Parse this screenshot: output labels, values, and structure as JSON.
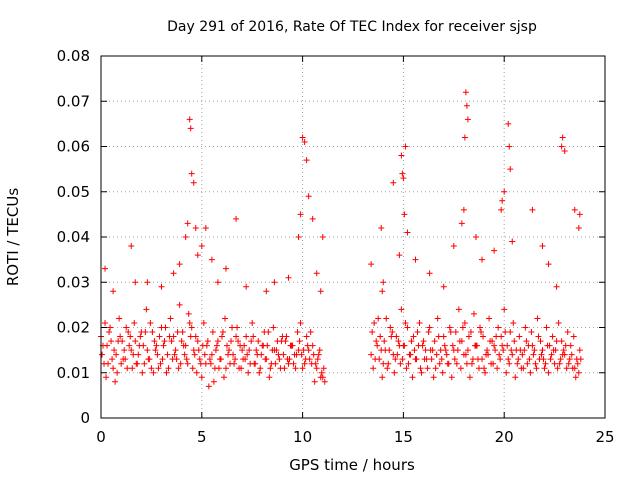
{
  "chart_data": {
    "type": "scatter",
    "title": "Day 291 of 2016, Rate Of TEC Index for receiver sjsp",
    "xlabel": "GPS time / hours",
    "ylabel": "ROTI / TECUs",
    "xlim": [
      0,
      25
    ],
    "ylim": [
      0,
      0.08
    ],
    "xticks": [
      "0",
      "5",
      "10",
      "15",
      "20",
      "25"
    ],
    "yticks": [
      "0",
      "0.01",
      "0.02",
      "0.03",
      "0.04",
      "0.05",
      "0.06",
      "0.07",
      "0.08"
    ],
    "grid": true,
    "marker": "+",
    "series": [
      {
        "name": "ROTI",
        "color": "#ff0000",
        "x": [
          0.0,
          0.15,
          0.3,
          0.45,
          0.6,
          0.75,
          0.9,
          1.05,
          1.2,
          1.35,
          1.5,
          1.65,
          1.8,
          1.95,
          2.1,
          2.25,
          2.4,
          2.55,
          2.7,
          2.85,
          3.0,
          3.15,
          3.3,
          3.45,
          3.6,
          3.75,
          3.9,
          4.05,
          4.2,
          4.35,
          4.5,
          4.65,
          4.8,
          4.95,
          5.1,
          5.25,
          5.4,
          5.55,
          5.7,
          5.85,
          6.0,
          6.15,
          6.3,
          6.45,
          6.6,
          6.75,
          6.9,
          7.05,
          7.2,
          7.35,
          7.5,
          7.65,
          7.8,
          7.95,
          8.1,
          8.25,
          8.4,
          8.55,
          8.7,
          8.85,
          9.0,
          9.15,
          9.3,
          9.45,
          9.6,
          9.75,
          9.9,
          10.05,
          10.2,
          10.35,
          10.5,
          10.65,
          10.8,
          10.95,
          11.1,
          0.05,
          0.2,
          0.35,
          0.5,
          0.65,
          0.8,
          0.95,
          1.1,
          1.25,
          1.4,
          1.55,
          1.7,
          1.85,
          2.0,
          2.15,
          2.3,
          2.45,
          2.6,
          2.75,
          2.9,
          3.05,
          3.2,
          3.35,
          3.5,
          3.65,
          3.8,
          3.95,
          4.1,
          4.25,
          4.4,
          4.55,
          4.7,
          4.85,
          5.0,
          5.15,
          5.3,
          5.45,
          5.6,
          5.75,
          5.9,
          6.05,
          6.2,
          6.35,
          6.5,
          6.65,
          6.8,
          6.95,
          7.1,
          7.25,
          7.4,
          7.55,
          7.7,
          7.85,
          8.0,
          8.15,
          8.3,
          8.45,
          8.6,
          8.75,
          8.9,
          9.05,
          9.2,
          9.35,
          9.5,
          9.65,
          9.8,
          9.95,
          10.1,
          10.25,
          10.4,
          10.55,
          10.7,
          10.85,
          11.0,
          0.1,
          0.25,
          0.4,
          0.55,
          0.7,
          0.85,
          1.0,
          1.15,
          1.3,
          1.45,
          1.6,
          1.75,
          1.9,
          2.05,
          2.2,
          2.35,
          2.5,
          2.65,
          2.8,
          2.95,
          3.1,
          3.25,
          3.4,
          3.55,
          3.7,
          3.85,
          4.0,
          4.15,
          4.3,
          4.45,
          4.6,
          4.75,
          4.9,
          5.05,
          5.2,
          5.35,
          5.5,
          5.65,
          5.8,
          5.95,
          6.1,
          6.25,
          6.4,
          6.55,
          6.7,
          6.85,
          7.0,
          7.15,
          7.3,
          7.45,
          7.6,
          7.75,
          7.9,
          8.05,
          8.2,
          8.35,
          8.5,
          8.65,
          8.8,
          8.95,
          9.1,
          9.25,
          9.4,
          9.55,
          9.7,
          9.85,
          10.0,
          10.15,
          10.3,
          10.45,
          10.6,
          10.75,
          10.9,
          11.05,
          0.2,
          0.6,
          1.5,
          1.7,
          2.3,
          3.0,
          3.6,
          3.9,
          4.2,
          4.3,
          4.4,
          4.45,
          4.5,
          4.6,
          4.7,
          4.8,
          5.0,
          5.2,
          5.5,
          5.8,
          6.2,
          6.7,
          7.2,
          8.2,
          8.6,
          9.3,
          9.8,
          9.9,
          10.0,
          10.1,
          10.2,
          10.3,
          10.5,
          10.7,
          10.9,
          11.0,
          13.4,
          13.55,
          13.7,
          13.85,
          14.0,
          14.15,
          14.3,
          14.45,
          14.6,
          14.75,
          14.9,
          15.05,
          15.2,
          15.35,
          15.5,
          15.65,
          15.8,
          15.95,
          16.1,
          16.25,
          16.4,
          16.55,
          16.7,
          16.85,
          17.0,
          17.15,
          17.3,
          17.45,
          17.6,
          17.75,
          17.9,
          18.05,
          18.2,
          18.35,
          18.5,
          18.65,
          18.8,
          18.95,
          19.1,
          19.25,
          19.4,
          19.55,
          19.7,
          19.85,
          20.0,
          20.15,
          20.3,
          20.45,
          20.6,
          20.75,
          20.9,
          21.05,
          21.2,
          21.35,
          21.5,
          21.65,
          21.8,
          21.95,
          22.1,
          22.25,
          22.4,
          22.55,
          22.7,
          22.85,
          23.0,
          23.15,
          23.3,
          23.45,
          23.6,
          23.75,
          13.45,
          13.6,
          13.75,
          13.9,
          14.05,
          14.2,
          14.35,
          14.5,
          14.65,
          14.8,
          14.95,
          15.1,
          15.25,
          15.4,
          15.55,
          15.7,
          15.85,
          16.0,
          16.15,
          16.3,
          16.45,
          16.6,
          16.75,
          16.9,
          17.05,
          17.2,
          17.35,
          17.5,
          17.65,
          17.8,
          17.95,
          18.1,
          18.25,
          18.4,
          18.55,
          18.7,
          18.85,
          19.0,
          19.15,
          19.3,
          19.45,
          19.6,
          19.75,
          19.9,
          20.05,
          20.2,
          20.35,
          20.5,
          20.65,
          20.8,
          20.95,
          21.1,
          21.25,
          21.4,
          21.55,
          21.7,
          21.85,
          22.0,
          22.15,
          22.3,
          22.45,
          22.6,
          22.75,
          22.9,
          23.05,
          23.2,
          23.35,
          23.5,
          23.65,
          23.8,
          13.5,
          13.65,
          13.8,
          13.95,
          14.1,
          14.25,
          14.4,
          14.55,
          14.7,
          14.85,
          15.0,
          15.15,
          15.3,
          15.45,
          15.6,
          15.75,
          15.9,
          16.05,
          16.2,
          16.35,
          16.5,
          16.65,
          16.8,
          16.95,
          17.1,
          17.25,
          17.4,
          17.55,
          17.7,
          17.85,
          18.0,
          18.15,
          18.3,
          18.45,
          18.6,
          18.75,
          18.9,
          19.05,
          19.2,
          19.35,
          19.5,
          19.65,
          19.8,
          19.95,
          20.1,
          20.25,
          20.4,
          20.55,
          20.7,
          20.85,
          21.0,
          21.15,
          21.3,
          21.45,
          21.6,
          21.75,
          21.9,
          22.05,
          22.2,
          22.35,
          22.5,
          22.65,
          22.8,
          22.95,
          23.1,
          23.25,
          23.4,
          23.55,
          23.7,
          13.4,
          13.9,
          13.95,
          14.0,
          14.5,
          14.8,
          14.9,
          14.95,
          15.0,
          15.05,
          15.1,
          15.2,
          15.6,
          16.3,
          17.0,
          17.5,
          17.9,
          18.0,
          18.05,
          18.1,
          18.15,
          18.2,
          18.6,
          18.9,
          19.5,
          19.85,
          19.9,
          20.0,
          20.2,
          20.25,
          20.3,
          20.4,
          21.4,
          21.9,
          22.2,
          22.6,
          22.85,
          22.9,
          23.0,
          23.5,
          23.7,
          23.75
        ],
        "y": [
          0.018,
          0.012,
          0.016,
          0.02,
          0.011,
          0.014,
          0.022,
          0.017,
          0.013,
          0.019,
          0.015,
          0.021,
          0.012,
          0.018,
          0.016,
          0.024,
          0.013,
          0.019,
          0.015,
          0.011,
          0.02,
          0.017,
          0.014,
          0.022,
          0.018,
          0.013,
          0.025,
          0.019,
          0.016,
          0.023,
          0.02,
          0.014,
          0.017,
          0.012,
          0.021,
          0.016,
          0.013,
          0.019,
          0.015,
          0.011,
          0.018,
          0.022,
          0.014,
          0.017,
          0.012,
          0.02,
          0.016,
          0.013,
          0.018,
          0.015,
          0.021,
          0.012,
          0.017,
          0.014,
          0.019,
          0.016,
          0.011,
          0.02,
          0.015,
          0.013,
          0.018,
          0.017,
          0.012,
          0.016,
          0.014,
          0.019,
          0.021,
          0.015,
          0.018,
          0.013,
          0.016,
          0.012,
          0.014,
          0.01,
          0.008,
          0.014,
          0.021,
          0.012,
          0.017,
          0.015,
          0.01,
          0.018,
          0.013,
          0.02,
          0.016,
          0.011,
          0.017,
          0.014,
          0.019,
          0.012,
          0.015,
          0.021,
          0.01,
          0.016,
          0.018,
          0.013,
          0.02,
          0.011,
          0.017,
          0.014,
          0.019,
          0.012,
          0.016,
          0.013,
          0.021,
          0.011,
          0.018,
          0.015,
          0.009,
          0.014,
          0.017,
          0.012,
          0.008,
          0.016,
          0.013,
          0.019,
          0.011,
          0.015,
          0.02,
          0.013,
          0.017,
          0.011,
          0.016,
          0.014,
          0.012,
          0.018,
          0.015,
          0.01,
          0.016,
          0.013,
          0.019,
          0.012,
          0.015,
          0.017,
          0.011,
          0.014,
          0.018,
          0.013,
          0.016,
          0.011,
          0.015,
          0.014,
          0.012,
          0.016,
          0.019,
          0.014,
          0.011,
          0.015,
          0.009,
          0.016,
          0.009,
          0.019,
          0.013,
          0.008,
          0.017,
          0.012,
          0.015,
          0.011,
          0.018,
          0.014,
          0.012,
          0.016,
          0.01,
          0.019,
          0.013,
          0.011,
          0.017,
          0.014,
          0.012,
          0.016,
          0.01,
          0.018,
          0.013,
          0.015,
          0.011,
          0.017,
          0.014,
          0.012,
          0.018,
          0.015,
          0.01,
          0.013,
          0.016,
          0.012,
          0.007,
          0.014,
          0.011,
          0.017,
          0.013,
          0.009,
          0.016,
          0.012,
          0.014,
          0.018,
          0.011,
          0.015,
          0.013,
          0.01,
          0.017,
          0.012,
          0.014,
          0.011,
          0.016,
          0.013,
          0.009,
          0.015,
          0.012,
          0.014,
          0.017,
          0.011,
          0.013,
          0.016,
          0.012,
          0.014,
          0.017,
          0.011,
          0.013,
          0.015,
          0.012,
          0.008,
          0.013,
          0.009,
          0.011,
          0.033,
          0.028,
          0.038,
          0.03,
          0.03,
          0.029,
          0.032,
          0.034,
          0.04,
          0.043,
          0.066,
          0.064,
          0.054,
          0.052,
          0.042,
          0.036,
          0.038,
          0.042,
          0.035,
          0.03,
          0.033,
          0.044,
          0.029,
          0.028,
          0.03,
          0.031,
          0.04,
          0.045,
          0.062,
          0.061,
          0.057,
          0.049,
          0.044,
          0.032,
          0.028,
          0.04,
          0.014,
          0.021,
          0.016,
          0.018,
          0.012,
          0.022,
          0.015,
          0.019,
          0.013,
          0.017,
          0.024,
          0.016,
          0.02,
          0.014,
          0.018,
          0.013,
          0.021,
          0.016,
          0.015,
          0.019,
          0.013,
          0.017,
          0.022,
          0.015,
          0.018,
          0.014,
          0.02,
          0.016,
          0.019,
          0.024,
          0.017,
          0.021,
          0.015,
          0.019,
          0.023,
          0.016,
          0.02,
          0.018,
          0.014,
          0.022,
          0.017,
          0.015,
          0.02,
          0.018,
          0.024,
          0.016,
          0.019,
          0.021,
          0.015,
          0.018,
          0.014,
          0.02,
          0.016,
          0.019,
          0.015,
          0.022,
          0.017,
          0.013,
          0.02,
          0.016,
          0.018,
          0.015,
          0.021,
          0.017,
          0.014,
          0.019,
          0.016,
          0.018,
          0.013,
          0.015,
          0.019,
          0.013,
          0.022,
          0.015,
          0.017,
          0.011,
          0.02,
          0.014,
          0.018,
          0.016,
          0.013,
          0.021,
          0.012,
          0.017,
          0.015,
          0.019,
          0.011,
          0.017,
          0.013,
          0.02,
          0.015,
          0.011,
          0.018,
          0.013,
          0.016,
          0.012,
          0.019,
          0.015,
          0.012,
          0.017,
          0.02,
          0.014,
          0.018,
          0.012,
          0.016,
          0.013,
          0.019,
          0.011,
          0.015,
          0.017,
          0.012,
          0.018,
          0.014,
          0.016,
          0.019,
          0.013,
          0.015,
          0.017,
          0.012,
          0.015,
          0.011,
          0.017,
          0.013,
          0.016,
          0.012,
          0.018,
          0.014,
          0.011,
          0.016,
          0.013,
          0.015,
          0.017,
          0.012,
          0.014,
          0.016,
          0.012,
          0.014,
          0.011,
          0.012,
          0.013,
          0.011,
          0.017,
          0.013,
          0.009,
          0.015,
          0.012,
          0.018,
          0.01,
          0.014,
          0.012,
          0.016,
          0.011,
          0.014,
          0.009,
          0.013,
          0.016,
          0.01,
          0.013,
          0.011,
          0.015,
          0.009,
          0.014,
          0.012,
          0.01,
          0.015,
          0.012,
          0.009,
          0.013,
          0.015,
          0.011,
          0.014,
          0.012,
          0.009,
          0.013,
          0.016,
          0.011,
          0.013,
          0.01,
          0.014,
          0.012,
          0.016,
          0.011,
          0.013,
          0.015,
          0.01,
          0.012,
          0.014,
          0.009,
          0.013,
          0.011,
          0.015,
          0.012,
          0.01,
          0.014,
          0.011,
          0.013,
          0.015,
          0.012,
          0.01,
          0.014,
          0.012,
          0.011,
          0.013,
          0.015,
          0.011,
          0.013,
          0.011,
          0.009,
          0.01,
          0.034,
          0.042,
          0.028,
          0.03,
          0.052,
          0.036,
          0.058,
          0.054,
          0.053,
          0.045,
          0.06,
          0.041,
          0.035,
          0.032,
          0.029,
          0.038,
          0.043,
          0.046,
          0.062,
          0.072,
          0.069,
          0.066,
          0.04,
          0.035,
          0.037,
          0.046,
          0.048,
          0.05,
          0.065,
          0.06,
          0.055,
          0.039,
          0.046,
          0.038,
          0.034,
          0.029,
          0.06,
          0.062,
          0.059,
          0.046,
          0.042,
          0.045
        ]
      }
    ]
  }
}
